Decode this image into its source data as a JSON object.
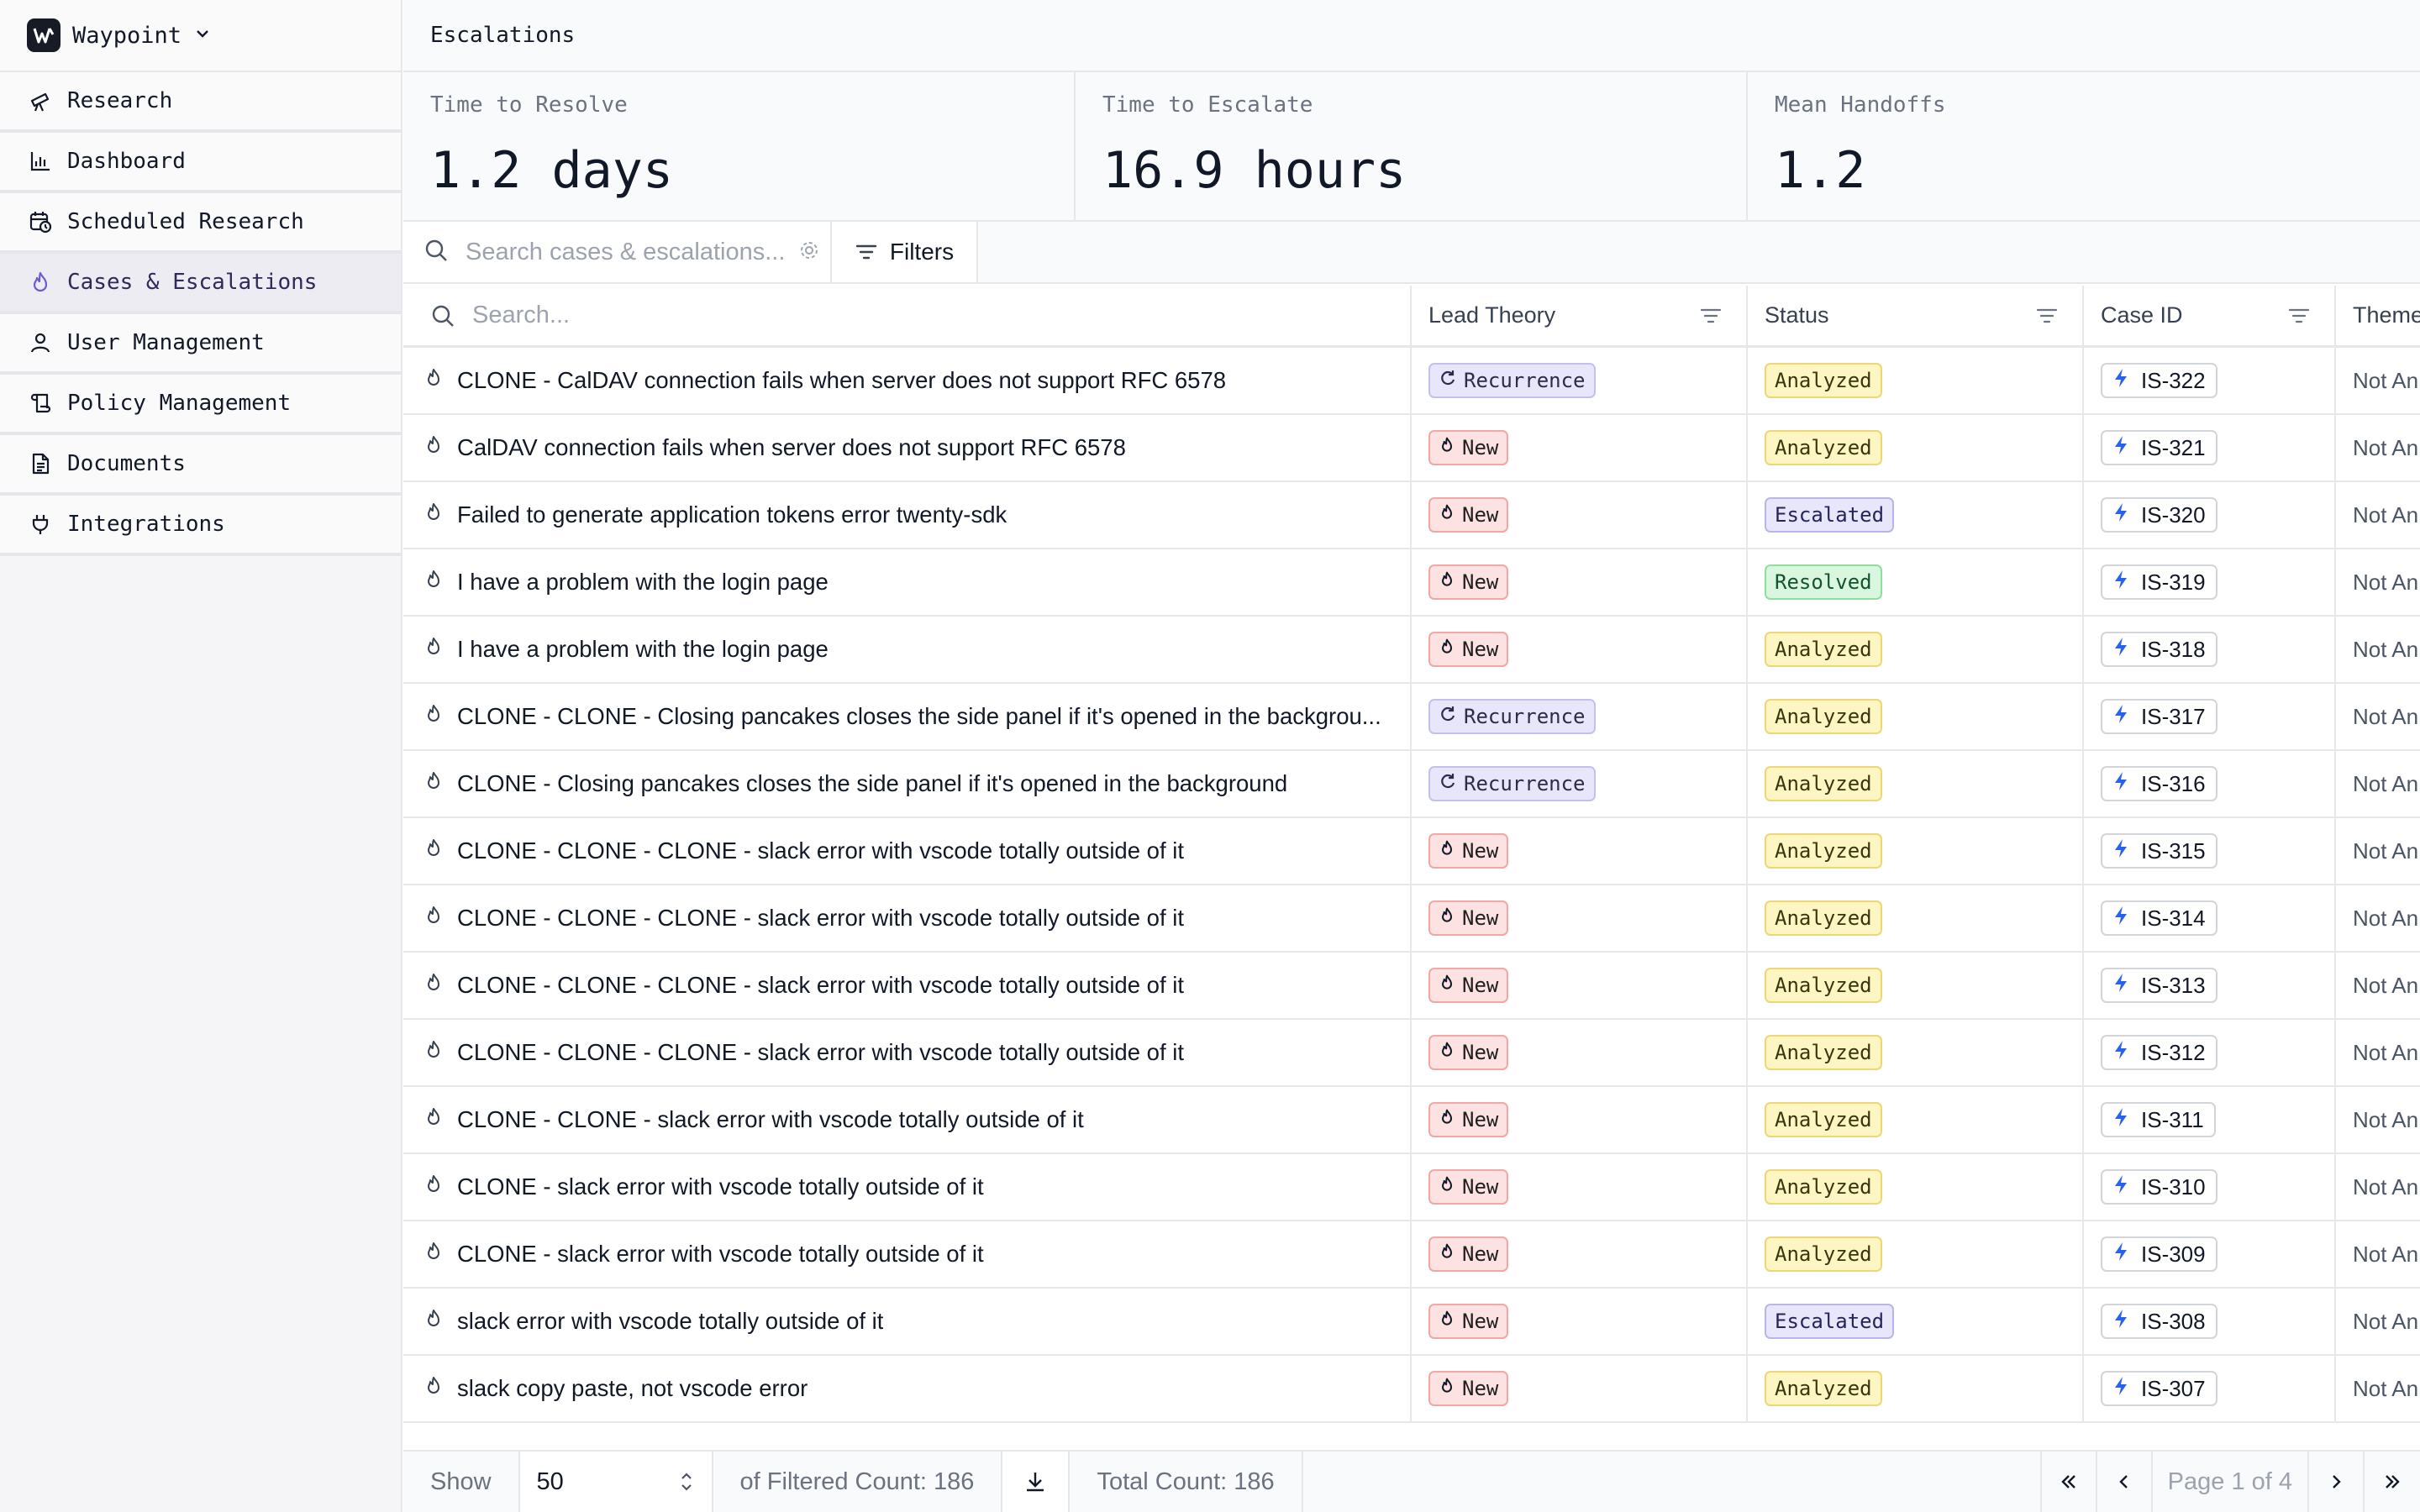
{
  "app": {
    "name": "Waypoint"
  },
  "sidebar": {
    "items": [
      {
        "label": "Research",
        "icon": "telescope-icon",
        "active": false
      },
      {
        "label": "Dashboard",
        "icon": "bar-chart-icon",
        "active": false
      },
      {
        "label": "Scheduled Research",
        "icon": "calendar-clock-icon",
        "active": false
      },
      {
        "label": "Cases & Escalations",
        "icon": "flame-icon",
        "active": true
      },
      {
        "label": "User Management",
        "icon": "user-icon",
        "active": false
      },
      {
        "label": "Policy Management",
        "icon": "scroll-icon",
        "active": false
      },
      {
        "label": "Documents",
        "icon": "document-icon",
        "active": false
      },
      {
        "label": "Integrations",
        "icon": "plug-icon",
        "active": false
      }
    ]
  },
  "header": {
    "title": "Escalations"
  },
  "metrics": [
    {
      "label": "Time to Resolve",
      "value": "1.2 days"
    },
    {
      "label": "Time to Escalate",
      "value": "16.9 hours"
    },
    {
      "label": "Mean Handoffs",
      "value": "1.2"
    }
  ],
  "search": {
    "placeholder": "Search cases & escalations...",
    "filters_label": "Filters"
  },
  "table": {
    "title_search_placeholder": "Search...",
    "columns": {
      "lead": "Lead Theory",
      "status": "Status",
      "case": "Case ID",
      "theme": "Theme"
    },
    "rows": [
      {
        "title": "CLONE - CalDAV connection fails when server does not support RFC 6578",
        "lead": "Recurrence",
        "status": "Analyzed",
        "case_id": "IS-322",
        "theme": "Not An"
      },
      {
        "title": "CalDAV connection fails when server does not support RFC 6578",
        "lead": "New",
        "status": "Analyzed",
        "case_id": "IS-321",
        "theme": "Not An"
      },
      {
        "title": "Failed to generate application tokens error twenty-sdk",
        "lead": "New",
        "status": "Escalated",
        "case_id": "IS-320",
        "theme": "Not An"
      },
      {
        "title": "I have a problem with the login page",
        "lead": "New",
        "status": "Resolved",
        "case_id": "IS-319",
        "theme": "Not An"
      },
      {
        "title": "I have a problem with the login page",
        "lead": "New",
        "status": "Analyzed",
        "case_id": "IS-318",
        "theme": "Not An"
      },
      {
        "title": "CLONE - CLONE - Closing pancakes closes the side panel if it's opened in the backgrou...",
        "lead": "Recurrence",
        "status": "Analyzed",
        "case_id": "IS-317",
        "theme": "Not An"
      },
      {
        "title": "CLONE - Closing pancakes closes the side panel if it's opened in the background",
        "lead": "Recurrence",
        "status": "Analyzed",
        "case_id": "IS-316",
        "theme": "Not An"
      },
      {
        "title": "CLONE - CLONE - CLONE - slack error with vscode totally outside of it",
        "lead": "New",
        "status": "Analyzed",
        "case_id": "IS-315",
        "theme": "Not An"
      },
      {
        "title": "CLONE - CLONE - CLONE - slack error with vscode totally outside of it",
        "lead": "New",
        "status": "Analyzed",
        "case_id": "IS-314",
        "theme": "Not An"
      },
      {
        "title": "CLONE - CLONE - CLONE - slack error with vscode totally outside of it",
        "lead": "New",
        "status": "Analyzed",
        "case_id": "IS-313",
        "theme": "Not An"
      },
      {
        "title": "CLONE - CLONE - CLONE - slack error with vscode totally outside of it",
        "lead": "New",
        "status": "Analyzed",
        "case_id": "IS-312",
        "theme": "Not An"
      },
      {
        "title": "CLONE - CLONE - slack error with vscode totally outside of it",
        "lead": "New",
        "status": "Analyzed",
        "case_id": "IS-311",
        "theme": "Not An"
      },
      {
        "title": "CLONE - slack error with vscode totally outside of it",
        "lead": "New",
        "status": "Analyzed",
        "case_id": "IS-310",
        "theme": "Not An"
      },
      {
        "title": "CLONE - slack error with vscode totally outside of it",
        "lead": "New",
        "status": "Analyzed",
        "case_id": "IS-309",
        "theme": "Not An"
      },
      {
        "title": "slack error with vscode totally outside of it",
        "lead": "New",
        "status": "Escalated",
        "case_id": "IS-308",
        "theme": "Not An"
      },
      {
        "title": "slack copy paste, not vscode error",
        "lead": "New",
        "status": "Analyzed",
        "case_id": "IS-307",
        "theme": "Not An"
      }
    ]
  },
  "footer": {
    "show_label": "Show",
    "page_size": "50",
    "filtered_count": "of Filtered Count: 186",
    "total_count": "Total Count: 186",
    "page_label": "Page 1 of 4"
  }
}
